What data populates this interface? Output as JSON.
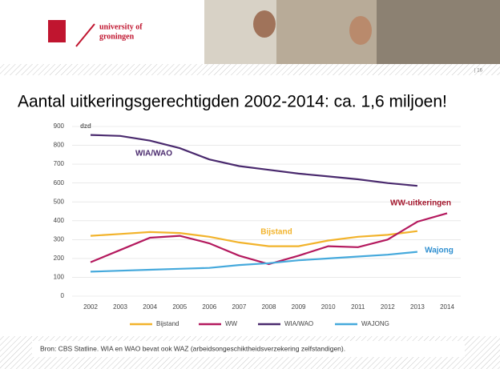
{
  "slide": {
    "logo_text": [
      "university of",
      "groningen"
    ],
    "page_number": "| 16"
  },
  "chart_data": {
    "type": "line",
    "title": "Aantal uitkeringsgerechtigden 2002-2014: ca. 1,6 miljoen!",
    "y_unit": "dzd",
    "categories": [
      "2002",
      "2003",
      "2004",
      "2005",
      "2006",
      "2007",
      "2008",
      "2009",
      "2010",
      "2011",
      "2012",
      "2013",
      "2014"
    ],
    "series": [
      {
        "name": "Bijstand",
        "color": "#f2b32b",
        "values": [
          320,
          330,
          340,
          335,
          315,
          285,
          265,
          265,
          295,
          315,
          325,
          345,
          null
        ]
      },
      {
        "name": "WW",
        "color": "#b4195e",
        "values": [
          180,
          245,
          310,
          320,
          280,
          215,
          170,
          215,
          265,
          260,
          300,
          395,
          440
        ]
      },
      {
        "name": "WIA/WAO",
        "color": "#4a2a6e",
        "values": [
          855,
          850,
          825,
          785,
          725,
          690,
          670,
          650,
          635,
          620,
          600,
          585,
          null
        ]
      },
      {
        "name": "WAJONG",
        "color": "#45a9dc",
        "values": [
          130,
          135,
          140,
          145,
          150,
          165,
          175,
          190,
          200,
          210,
          220,
          235,
          null
        ]
      }
    ],
    "annotations": [
      {
        "text": "WIA/WAO",
        "color": "#4a2a6e"
      },
      {
        "text": "WW-uitkeringen",
        "color": "#a3162c"
      },
      {
        "text": "Bijstand",
        "color": "#f2b32b"
      },
      {
        "text": "Wajong",
        "color": "#2f8fd0"
      }
    ],
    "ylim": [
      0,
      900
    ],
    "yticks": [
      0,
      100,
      200,
      300,
      400,
      500,
      600,
      700,
      800,
      900
    ],
    "source": "Bron: CBS Statline. WIA en WAO bevat ook WAZ (arbeidsongeschiktheidsverzekering zelfstandigen)."
  }
}
